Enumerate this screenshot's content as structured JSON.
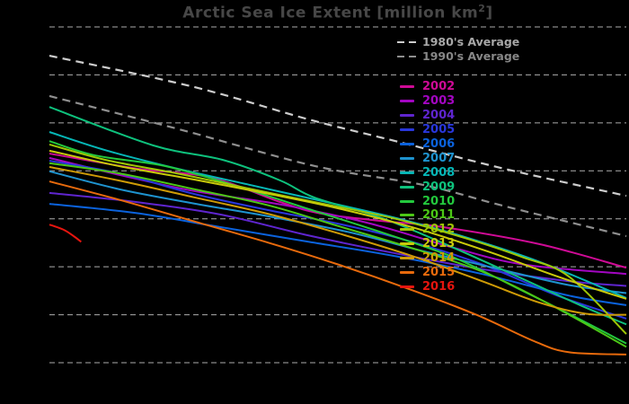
{
  "header": {
    "title_prefix": "Arctic Sea Ice Extent [million km",
    "title_sup": "2",
    "title_suffix": "]",
    "title_color": "#474747"
  },
  "colors": {
    "background": "#000000",
    "gridline": "#adadad"
  },
  "chart_data": {
    "type": "line",
    "title": "Arctic Sea Ice Extent [million km²]",
    "xlabel": "",
    "ylabel": "",
    "x_axis": {
      "tick_labels_visible": false
    },
    "y_axis": {
      "tick_labels_visible": false,
      "units_estimated": "million km2",
      "gridline_values_estimated": [
        13,
        12,
        11,
        10,
        9,
        8,
        7,
        6
      ]
    },
    "grid": "horizontal dashed lines only",
    "legend_position": "inside upper-right area, no box",
    "series": [
      {
        "label": "1980's Average",
        "color": "#cdcdcd",
        "label_color": "#a8a8a8",
        "dashed": true,
        "points": [
          [
            0,
            12.4
          ],
          [
            25,
            11.75
          ],
          [
            45,
            11.07
          ],
          [
            60,
            10.62
          ],
          [
            79,
            10.04
          ],
          [
            100,
            9.48
          ]
        ]
      },
      {
        "label": "1990's Average",
        "color": "#8f8f8f",
        "label_color": "#878787",
        "dashed": true,
        "points": [
          [
            0,
            11.56
          ],
          [
            23,
            10.85
          ],
          [
            46,
            10.1
          ],
          [
            65,
            9.7
          ],
          [
            79,
            9.26
          ],
          [
            100,
            8.64
          ]
        ]
      },
      {
        "label": "2002",
        "color": "#cf0b96",
        "label_color": "#cf0b96",
        "dashed": false,
        "points": [
          [
            0,
            10.36
          ],
          [
            15,
            10.05
          ],
          [
            28,
            9.86
          ],
          [
            40,
            9.35
          ],
          [
            47,
            9.11
          ],
          [
            58,
            8.95
          ],
          [
            68,
            8.83
          ],
          [
            85,
            8.47
          ],
          [
            100,
            7.98
          ]
        ]
      },
      {
        "label": "2003",
        "color": "#a306c2",
        "label_color": "#a306c2",
        "dashed": false,
        "points": [
          [
            0,
            10.27
          ],
          [
            12,
            9.92
          ],
          [
            25,
            9.58
          ],
          [
            40,
            9.3
          ],
          [
            55,
            8.92
          ],
          [
            70,
            8.4
          ],
          [
            82,
            8.05
          ],
          [
            100,
            7.85
          ]
        ]
      },
      {
        "label": "2004",
        "color": "#5f25cf",
        "label_color": "#5f25cf",
        "dashed": false,
        "points": [
          [
            0,
            9.54
          ],
          [
            15,
            9.35
          ],
          [
            30,
            9.08
          ],
          [
            45,
            8.65
          ],
          [
            60,
            8.28
          ],
          [
            75,
            7.95
          ],
          [
            90,
            7.7
          ],
          [
            100,
            7.6
          ]
        ]
      },
      {
        "label": "2005",
        "color": "#2937dc",
        "label_color": "#2937dc",
        "dashed": false,
        "points": [
          [
            0,
            10.21
          ],
          [
            12,
            9.95
          ],
          [
            25,
            9.52
          ],
          [
            38,
            9.18
          ],
          [
            50,
            8.9
          ],
          [
            62,
            8.55
          ],
          [
            75,
            8.05
          ],
          [
            88,
            7.4
          ],
          [
            100,
            6.92
          ]
        ]
      },
      {
        "label": "2006",
        "color": "#0b62dc",
        "label_color": "#0b62dc",
        "dashed": false,
        "points": [
          [
            0,
            9.31
          ],
          [
            15,
            9.12
          ],
          [
            30,
            8.82
          ],
          [
            45,
            8.52
          ],
          [
            60,
            8.22
          ],
          [
            75,
            7.85
          ],
          [
            90,
            7.4
          ],
          [
            100,
            7.2
          ]
        ]
      },
      {
        "label": "2007",
        "color": "#1e93cf",
        "label_color": "#1e93cf",
        "dashed": false,
        "points": [
          [
            0,
            9.99
          ],
          [
            12,
            9.62
          ],
          [
            25,
            9.32
          ],
          [
            38,
            9.05
          ],
          [
            52,
            8.72
          ],
          [
            65,
            8.32
          ],
          [
            78,
            7.95
          ],
          [
            90,
            7.62
          ],
          [
            100,
            7.45
          ]
        ]
      },
      {
        "label": "2008",
        "color": "#06b6b6",
        "label_color": "#06b6b6",
        "dashed": false,
        "points": [
          [
            0,
            10.81
          ],
          [
            10,
            10.42
          ],
          [
            22,
            10.05
          ],
          [
            35,
            9.7
          ],
          [
            48,
            9.35
          ],
          [
            60,
            9.02
          ],
          [
            72,
            8.62
          ],
          [
            85,
            8.1
          ],
          [
            100,
            7.35
          ]
        ]
      },
      {
        "label": "2009",
        "color": "#0ec27d",
        "label_color": "#0ec27d",
        "dashed": false,
        "points": [
          [
            0,
            11.33
          ],
          [
            18,
            10.53
          ],
          [
            30,
            10.23
          ],
          [
            40,
            9.8
          ],
          [
            46,
            9.44
          ],
          [
            58,
            9.0
          ],
          [
            70,
            8.4
          ],
          [
            82,
            7.75
          ],
          [
            92,
            7.2
          ],
          [
            100,
            6.8
          ]
        ]
      },
      {
        "label": "2010",
        "color": "#23c93d",
        "label_color": "#23c93d",
        "dashed": false,
        "points": [
          [
            0,
            10.62
          ],
          [
            8,
            10.32
          ],
          [
            20,
            10.1
          ],
          [
            32,
            9.7
          ],
          [
            45,
            9.2
          ],
          [
            58,
            8.7
          ],
          [
            70,
            8.2
          ],
          [
            82,
            7.5
          ],
          [
            92,
            6.9
          ],
          [
            100,
            6.4
          ]
        ]
      },
      {
        "label": "2011",
        "color": "#4cc716",
        "label_color": "#4cc716",
        "dashed": false,
        "points": [
          [
            0,
            10.16
          ],
          [
            12,
            9.95
          ],
          [
            25,
            9.62
          ],
          [
            38,
            9.28
          ],
          [
            50,
            8.85
          ],
          [
            62,
            8.42
          ],
          [
            75,
            7.9
          ],
          [
            87,
            7.2
          ],
          [
            100,
            6.33
          ]
        ]
      },
      {
        "label": "2012",
        "color": "#9ec705",
        "label_color": "#9ec705",
        "dashed": false,
        "points": [
          [
            0,
            10.55
          ],
          [
            10,
            10.22
          ],
          [
            22,
            9.95
          ],
          [
            35,
            9.62
          ],
          [
            48,
            9.3
          ],
          [
            60,
            9.0
          ],
          [
            72,
            8.6
          ],
          [
            82,
            8.2
          ],
          [
            90,
            7.8
          ],
          [
            100,
            6.6
          ]
        ]
      },
      {
        "label": "2013",
        "color": "#c9c90a",
        "label_color": "#c9c90a",
        "dashed": false,
        "points": [
          [
            0,
            10.42
          ],
          [
            12,
            10.1
          ],
          [
            25,
            9.82
          ],
          [
            38,
            9.52
          ],
          [
            50,
            9.22
          ],
          [
            63,
            8.82
          ],
          [
            76,
            8.32
          ],
          [
            88,
            7.8
          ],
          [
            100,
            7.33
          ]
        ]
      },
      {
        "label": "2014",
        "color": "#cf9b06",
        "label_color": "#cf9b06",
        "dashed": false,
        "points": [
          [
            0,
            10.08
          ],
          [
            12,
            9.8
          ],
          [
            25,
            9.45
          ],
          [
            38,
            9.1
          ],
          [
            50,
            8.7
          ],
          [
            63,
            8.22
          ],
          [
            75,
            7.7
          ],
          [
            85,
            7.25
          ],
          [
            93,
            7.02
          ],
          [
            100,
            7.0
          ]
        ]
      },
      {
        "label": "2015",
        "color": "#e86a0c",
        "label_color": "#e86a0c",
        "dashed": false,
        "points": [
          [
            0,
            9.78
          ],
          [
            12,
            9.4
          ],
          [
            25,
            8.95
          ],
          [
            38,
            8.5
          ],
          [
            50,
            8.05
          ],
          [
            62,
            7.55
          ],
          [
            74,
            7.0
          ],
          [
            84,
            6.45
          ],
          [
            90,
            6.22
          ],
          [
            100,
            6.17
          ]
        ]
      },
      {
        "label": "2016",
        "color": "#e6150f",
        "label_color": "#e6150f",
        "dashed": false,
        "points": [
          [
            0,
            8.88
          ],
          [
            2.5,
            8.77
          ],
          [
            4.3,
            8.63
          ],
          [
            5.5,
            8.52
          ]
        ]
      }
    ]
  }
}
